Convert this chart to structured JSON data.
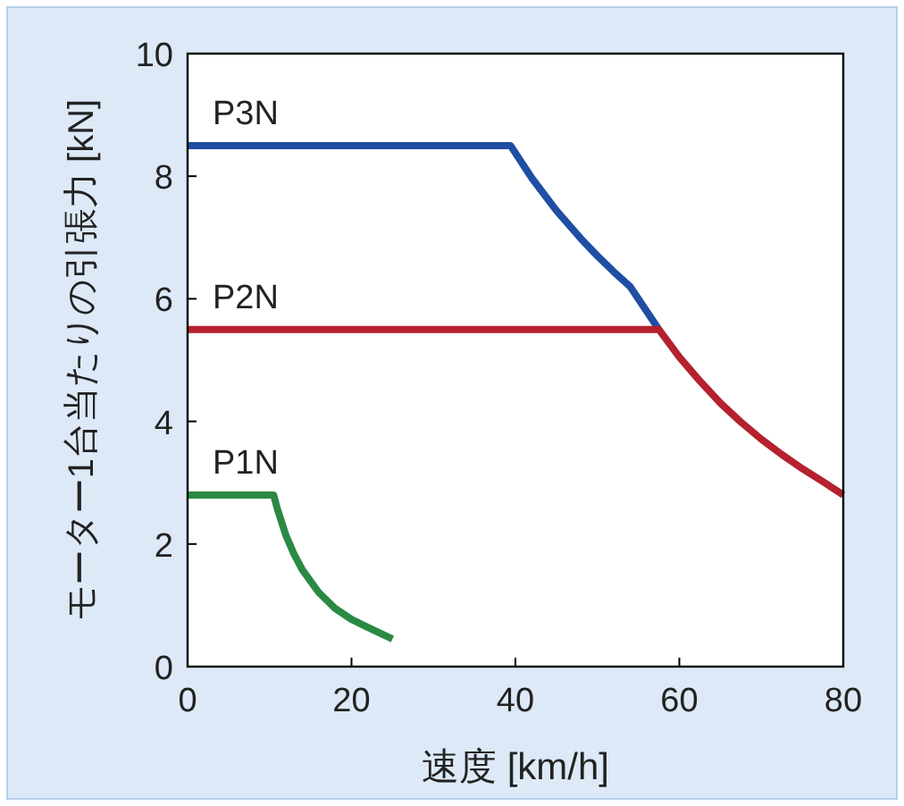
{
  "chart_data": {
    "type": "line",
    "xlabel": "速度 [km/h]",
    "ylabel": "モーター1台当たりの引張力 [kN]",
    "xlim": [
      0,
      80
    ],
    "ylim": [
      0,
      10
    ],
    "xticks": [
      0,
      20,
      40,
      60,
      80
    ],
    "yticks": [
      0,
      2,
      4,
      6,
      8,
      10
    ],
    "series": [
      {
        "name": "P3N",
        "color": "#1f4ea3",
        "x": [
          0,
          39.4,
          42,
          45,
          48,
          50,
          52,
          54,
          57.5
        ],
        "values": [
          8.5,
          8.5,
          7.97,
          7.44,
          6.98,
          6.7,
          6.44,
          6.2,
          5.5
        ]
      },
      {
        "name": "P2N",
        "color": "#b5212e",
        "x": [
          0,
          57.5,
          60,
          62.5,
          65,
          67.5,
          70,
          72.5,
          75,
          77.5,
          80
        ],
        "values": [
          5.5,
          5.5,
          5.05,
          4.66,
          4.3,
          3.99,
          3.71,
          3.46,
          3.23,
          3.02,
          2.8
        ]
      },
      {
        "name": "P1N",
        "color": "#2a8a44",
        "x": [
          0,
          10.5,
          11,
          12,
          13,
          14,
          16,
          18,
          20,
          22,
          25
        ],
        "values": [
          2.8,
          2.8,
          2.55,
          2.14,
          1.83,
          1.58,
          1.21,
          0.95,
          0.77,
          0.64,
          0.45
        ]
      }
    ]
  }
}
